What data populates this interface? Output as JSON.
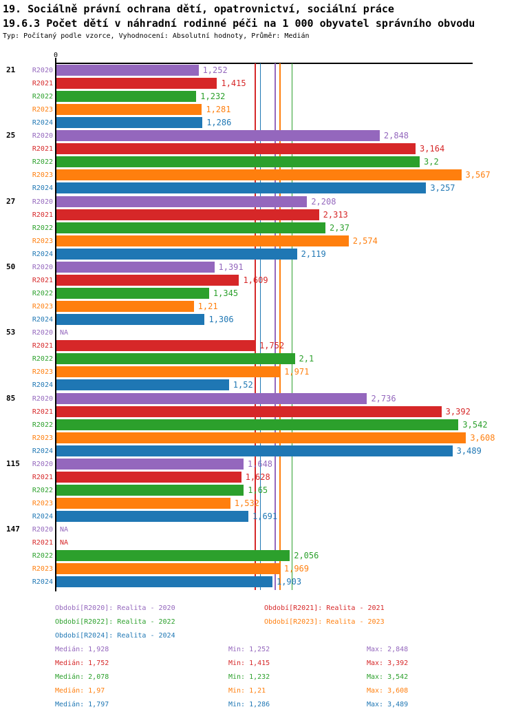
{
  "header": {
    "title": "19. Sociálně právní ochrana dětí, opatrovnictví, sociální práce",
    "subtitle": "19.6.3 Počet dětí v náhradní rodinné péči na 1 000 obyvatel správního obvodu",
    "meta": "Typ: Počítaný podle vzorce, Vyhodnocení: Absolutní hodnoty, Průměr: Medián"
  },
  "chart_data": {
    "type": "bar",
    "orientation": "horizontal",
    "title": "19.6.3 Počet dětí v náhradní rodinné péči na 1 000 obyvatel správního obvodu",
    "x_axis": {
      "zero_label": "0",
      "min": 0,
      "max_shown_value": 3.608
    },
    "na_label": "NA",
    "stats_labels": {
      "median": "Medián",
      "min": "Min",
      "max": "Max"
    },
    "series": [
      {
        "id": "R2020",
        "row_label": "R2020",
        "legend_label": "Období[R2020]: Realita - 2020",
        "color": "#9467bd",
        "median": "1,928",
        "min": "1,252",
        "max": "2,848"
      },
      {
        "id": "R2021",
        "row_label": "R2021",
        "legend_label": "Období[R2021]: Realita - 2021",
        "color": "#d62728",
        "median": "1,752",
        "min": "1,415",
        "max": "3,392"
      },
      {
        "id": "R2022",
        "row_label": "R2022",
        "legend_label": "Období[R2022]: Realita - 2022",
        "color": "#2ca02c",
        "median": "2,078",
        "min": "1,232",
        "max": "3,542"
      },
      {
        "id": "R2023",
        "row_label": "R2023",
        "legend_label": "Období[R2023]: Realita - 2023",
        "color": "#ff7f0e",
        "median": "1,97",
        "min": "1,21",
        "max": "3,608"
      },
      {
        "id": "R2024",
        "row_label": "R2024",
        "legend_label": "Období[R2024]: Realita - 2024",
        "color": "#1f77b4",
        "median": "1,797",
        "min": "1,286",
        "max": "3,489"
      }
    ],
    "groups": [
      {
        "label": "21",
        "values": [
          "1,252",
          "1,415",
          "1,232",
          "1,281",
          "1,286"
        ]
      },
      {
        "label": "25",
        "values": [
          "2,848",
          "3,164",
          "3,2",
          "3,567",
          "3,257"
        ]
      },
      {
        "label": "27",
        "values": [
          "2,208",
          "2,313",
          "2,37",
          "2,574",
          "2,119"
        ]
      },
      {
        "label": "50",
        "values": [
          "1,391",
          "1,609",
          "1,345",
          "1,21",
          "1,306"
        ]
      },
      {
        "label": "53",
        "values": [
          "NA",
          "1,752",
          "2,1",
          "1,971",
          "1,52"
        ]
      },
      {
        "label": "85",
        "values": [
          "2,736",
          "3,392",
          "3,542",
          "3,608",
          "3,489"
        ]
      },
      {
        "label": "115",
        "values": [
          "1,648",
          "1,628",
          "1,65",
          "1,532",
          "1,691"
        ]
      },
      {
        "label": "147",
        "values": [
          "NA",
          "NA",
          "2,056",
          "1,969",
          "1,903"
        ]
      }
    ]
  }
}
